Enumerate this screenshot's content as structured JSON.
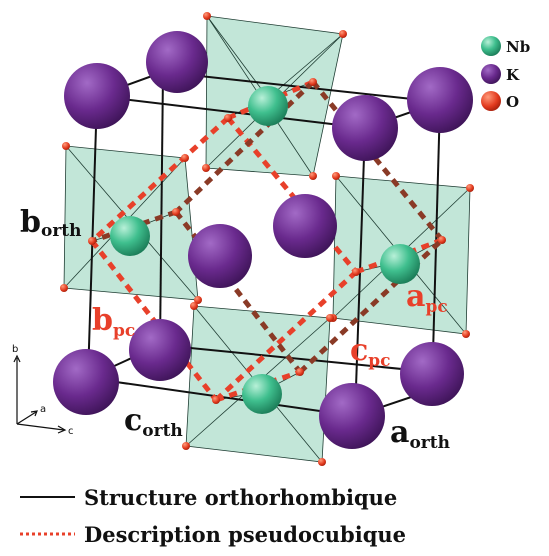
{
  "elements_legend": [
    {
      "symbol": "Nb",
      "color": "#2fb38a"
    },
    {
      "symbol": "K",
      "color": "#6a2a8e"
    },
    {
      "symbol": "O",
      "color": "#e23a1e"
    }
  ],
  "axis_labels": {
    "a": "a",
    "b": "b",
    "c": "c"
  },
  "labels": {
    "b_orth": {
      "main": "b",
      "sub": "orth"
    },
    "c_orth": {
      "main": "c",
      "sub": "orth"
    },
    "a_orth": {
      "main": "a",
      "sub": "orth"
    },
    "b_pc": {
      "main": "b",
      "sub": "pc"
    },
    "a_pc": {
      "main": "a",
      "sub": "pc"
    },
    "c_pc": {
      "main": "c",
      "sub": "pc"
    }
  },
  "legend": [
    {
      "style": "solid",
      "text": "Structure orthorhombique"
    },
    {
      "style": "dashed",
      "text": "Description pseudocubique"
    }
  ]
}
